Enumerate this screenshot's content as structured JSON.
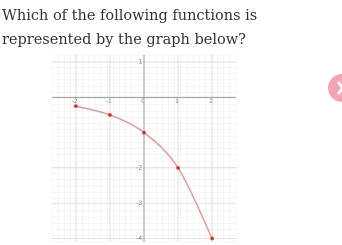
{
  "question": {
    "lines": [
      "Which of the following functions is",
      "represented by the graph below?"
    ]
  },
  "graph": {
    "type": "line",
    "x": [
      -2,
      -1,
      0,
      1,
      2
    ],
    "values": [
      -0.25,
      -0.5,
      -1,
      -2,
      -4
    ],
    "curve_color": "#e59a9a",
    "point_color": "#d0312d",
    "xlim": [
      -2.7,
      2.7
    ],
    "ylim": [
      -4.1,
      1.2
    ],
    "xticks": [
      -2,
      -1,
      0,
      1,
      2
    ],
    "yticks": [
      1,
      -2,
      -3,
      -4
    ],
    "grid": true
  }
}
